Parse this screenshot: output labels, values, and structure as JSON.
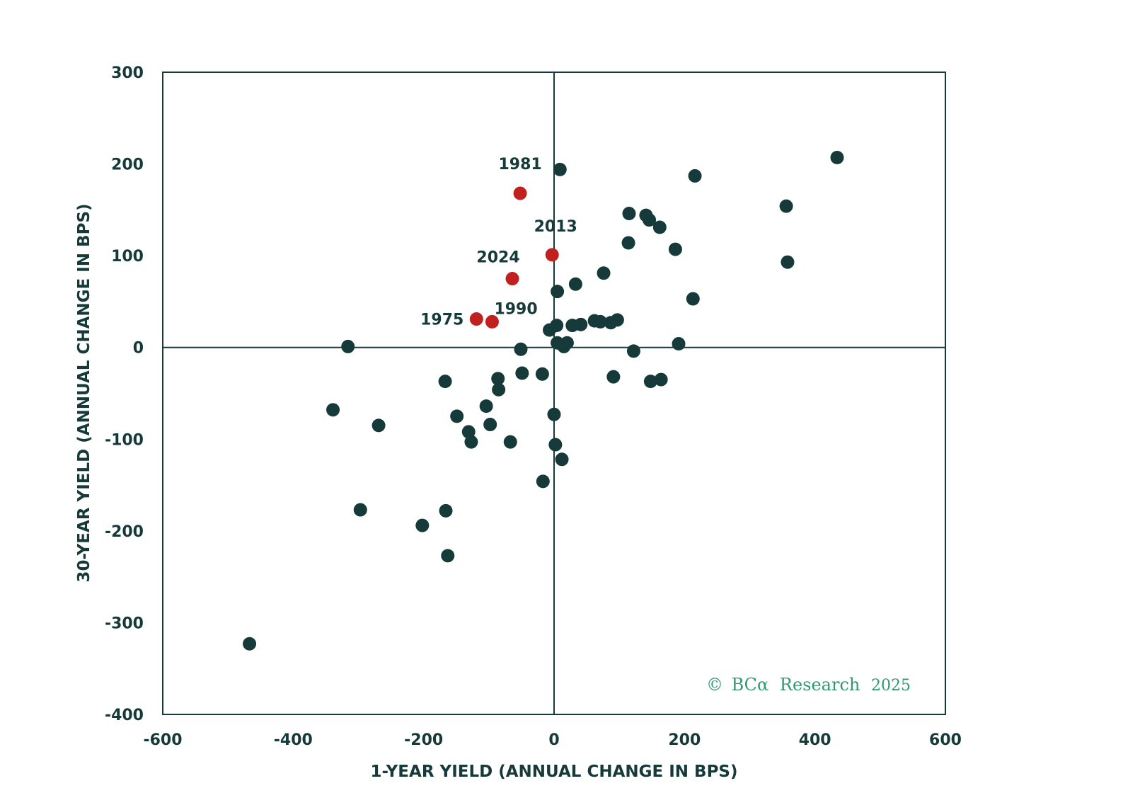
{
  "colors": {
    "dark": "#163a3a",
    "highlight": "#c0211f",
    "copyright": "#2f9a72",
    "background": "#ffffff"
  },
  "chart_data": {
    "type": "scatter",
    "title": "",
    "xlabel": "1-YEAR YIELD (ANNUAL CHANGE IN BPS)",
    "ylabel": "30-YEAR YIELD (ANNUAL CHANGE IN BPS)",
    "xlim": [
      -600,
      600
    ],
    "ylim": [
      -400,
      300
    ],
    "xticks": [
      -600,
      -400,
      -200,
      0,
      200,
      400,
      600
    ],
    "yticks": [
      -400,
      -300,
      -200,
      -100,
      0,
      100,
      200,
      300
    ],
    "grid": false,
    "reference_lines": {
      "x": 0,
      "y": 0
    },
    "highlighted": [
      {
        "label": "1981",
        "x": -52,
        "y": 168
      },
      {
        "label": "2013",
        "x": -3,
        "y": 101
      },
      {
        "label": "2024",
        "x": -64,
        "y": 75
      },
      {
        "label": "1975",
        "x": -119,
        "y": 31
      },
      {
        "label": "1990",
        "x": -95,
        "y": 28
      }
    ],
    "points": [
      [
        -467,
        -323
      ],
      [
        -339,
        -68
      ],
      [
        -316,
        1
      ],
      [
        -269,
        -85
      ],
      [
        -297,
        -177
      ],
      [
        -202,
        -194
      ],
      [
        -166,
        -178
      ],
      [
        -163,
        -227
      ],
      [
        -167,
        -37
      ],
      [
        -149,
        -75
      ],
      [
        -131,
        -92
      ],
      [
        -127,
        -103
      ],
      [
        -104,
        -64
      ],
      [
        -98,
        -84
      ],
      [
        -86,
        -34
      ],
      [
        -85,
        -46
      ],
      [
        -67,
        -103
      ],
      [
        -51,
        -2
      ],
      [
        -49,
        -28
      ],
      [
        -18,
        -29
      ],
      [
        -17,
        -146
      ],
      [
        -7,
        19
      ],
      [
        0,
        -73
      ],
      [
        2,
        -106
      ],
      [
        5,
        5
      ],
      [
        4,
        24
      ],
      [
        5,
        61
      ],
      [
        9,
        194
      ],
      [
        12,
        -122
      ],
      [
        15,
        1
      ],
      [
        20,
        5
      ],
      [
        28,
        24
      ],
      [
        33,
        69
      ],
      [
        41,
        25
      ],
      [
        62,
        29
      ],
      [
        71,
        28
      ],
      [
        76,
        81
      ],
      [
        87,
        27
      ],
      [
        97,
        30
      ],
      [
        91,
        -32
      ],
      [
        114,
        114
      ],
      [
        115,
        146
      ],
      [
        122,
        -4
      ],
      [
        141,
        144
      ],
      [
        146,
        139
      ],
      [
        148,
        -37
      ],
      [
        162,
        131
      ],
      [
        164,
        -35
      ],
      [
        186,
        107
      ],
      [
        191,
        4
      ],
      [
        213,
        53
      ],
      [
        216,
        187
      ],
      [
        356,
        154
      ],
      [
        358,
        93
      ],
      [
        434,
        207
      ]
    ]
  },
  "copyright": {
    "symbol": "©",
    "brand": "BCα",
    "text": "Research",
    "year": "2025"
  }
}
